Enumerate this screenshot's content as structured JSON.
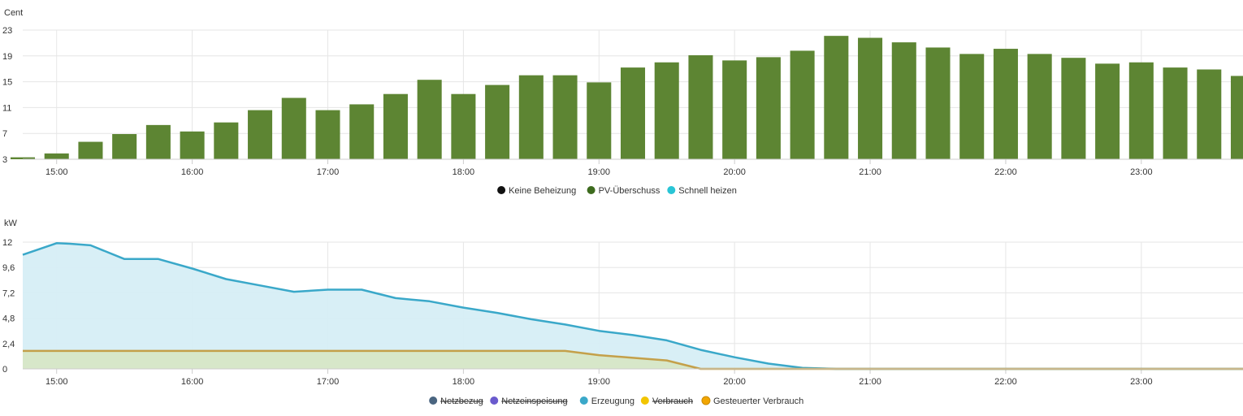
{
  "colors": {
    "grid": "#e6e6e6",
    "axis": "#cccccc",
    "bar": "#5d8533",
    "erzeugung_line": "#3aa8c9",
    "erzeugung_fill": "#d6eef6",
    "gesteuert_line": "#c4a04a",
    "gesteuert_fill": "#d7e6c6"
  },
  "chart_data": [
    {
      "type": "bar",
      "ylabel": "Cent",
      "ylim": [
        3,
        23
      ],
      "yticks": [
        "3",
        "7",
        "11",
        "15",
        "19",
        "23"
      ],
      "ytick_values": [
        3,
        7,
        11,
        15,
        19,
        23
      ],
      "xlim": [
        14.75,
        23.75
      ],
      "xticks": [
        "15:00",
        "16:00",
        "17:00",
        "18:00",
        "19:00",
        "20:00",
        "21:00",
        "22:00",
        "23:00"
      ],
      "xtick_values": [
        15,
        16,
        17,
        18,
        19,
        20,
        21,
        22,
        23
      ],
      "series": [
        {
          "name": "PV-Überschuss",
          "x": [
            14.75,
            15.0,
            15.25,
            15.5,
            15.75,
            16.0,
            16.25,
            16.5,
            16.75,
            17.0,
            17.25,
            17.5,
            17.75,
            18.0,
            18.25,
            18.5,
            18.75,
            19.0,
            19.25,
            19.5,
            19.75,
            20.0,
            20.25,
            20.5,
            20.75,
            21.0,
            21.25,
            21.5,
            21.75,
            22.0,
            22.25,
            22.5,
            22.75,
            23.0,
            23.25,
            23.5,
            23.75
          ],
          "values": [
            3.3,
            3.9,
            5.7,
            6.9,
            8.3,
            7.3,
            8.7,
            10.6,
            12.5,
            10.6,
            11.5,
            13.1,
            15.3,
            13.1,
            14.5,
            16.0,
            16.0,
            14.9,
            17.2,
            18.0,
            19.1,
            18.3,
            18.8,
            19.8,
            22.1,
            21.8,
            21.1,
            20.3,
            19.3,
            20.1,
            19.3,
            18.7,
            17.8,
            18.0,
            17.2,
            16.9,
            15.9
          ]
        }
      ],
      "legend": [
        {
          "name": "Keine Beheizung",
          "color": "#111111",
          "hidden": false
        },
        {
          "name": "PV-Überschuss",
          "color": "#3d6b1e",
          "hidden": false
        },
        {
          "name": "Schnell heizen",
          "color": "#29c5d6",
          "hidden": false
        }
      ]
    },
    {
      "type": "area",
      "ylabel": "kW",
      "ylim": [
        0,
        12
      ],
      "yticks": [
        "0",
        "2,4",
        "4,8",
        "7,2",
        "9,6",
        "12"
      ],
      "ytick_values": [
        0,
        2.4,
        4.8,
        7.2,
        9.6,
        12
      ],
      "xlim": [
        14.75,
        23.75
      ],
      "xticks": [
        "15:00",
        "16:00",
        "17:00",
        "18:00",
        "19:00",
        "20:00",
        "21:00",
        "22:00",
        "23:00"
      ],
      "xtick_values": [
        15,
        16,
        17,
        18,
        19,
        20,
        21,
        22,
        23
      ],
      "series": [
        {
          "name": "Erzeugung",
          "x": [
            14.75,
            15.0,
            15.1,
            15.25,
            15.5,
            15.75,
            16.0,
            16.25,
            16.5,
            16.75,
            17.0,
            17.25,
            17.5,
            17.75,
            18.0,
            18.25,
            18.5,
            18.75,
            19.0,
            19.25,
            19.5,
            19.75,
            20.0,
            20.25,
            20.5,
            20.75,
            21.0,
            21.5,
            22.0,
            22.5,
            23.0,
            23.75
          ],
          "values": [
            10.8,
            11.9,
            11.85,
            11.7,
            10.4,
            10.4,
            9.5,
            8.5,
            7.9,
            7.3,
            7.5,
            7.5,
            6.7,
            6.4,
            5.8,
            5.3,
            4.7,
            4.2,
            3.6,
            3.2,
            2.7,
            1.8,
            1.1,
            0.5,
            0.1,
            0,
            0,
            0,
            0,
            0,
            0,
            0
          ]
        },
        {
          "name": "Gesteuerter Verbrauch",
          "x": [
            14.75,
            15.0,
            16.0,
            17.0,
            18.0,
            18.75,
            19.0,
            19.25,
            19.5,
            19.75,
            20.0,
            21.0,
            22.0,
            23.0,
            23.75
          ],
          "values": [
            1.7,
            1.7,
            1.7,
            1.7,
            1.7,
            1.7,
            1.3,
            1.05,
            0.8,
            0,
            0,
            0,
            0,
            0,
            0
          ]
        }
      ],
      "legend": [
        {
          "name": "Netzbezug",
          "color": "#4a6580",
          "hidden": true
        },
        {
          "name": "Netzeinspeisung",
          "color": "#6a5acd",
          "hidden": true
        },
        {
          "name": "Erzeugung",
          "color": "#3aa8c9",
          "hidden": false
        },
        {
          "name": "Verbrauch",
          "color": "#f2c500",
          "hidden": true
        },
        {
          "name": "Gesteuerter Verbrauch",
          "color": "#f2a600",
          "hidden": false
        }
      ]
    }
  ]
}
